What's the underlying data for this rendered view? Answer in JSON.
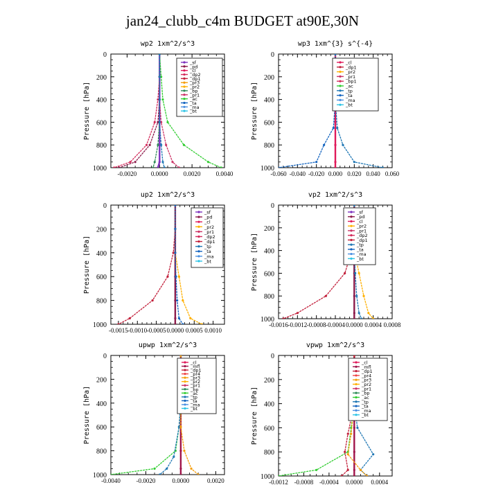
{
  "figure": {
    "title": "jan24_clubb_c4m  BUDGET at90E,30N"
  },
  "colors": {
    "sf": "#7b2fbe",
    "pd": "#8b1a4a",
    "cl": "#e0195a",
    "dp1": "#c21f3a",
    "dp2": "#d42a5b",
    "pr1": "#cc3366",
    "pr2": "#ffb000",
    "pr3": "#f59e0b",
    "pr4": "#ef4444",
    "mfl": "#a0144a",
    "bp": "#2e8b57",
    "ac": "#32cd32",
    "tp": "#1f77b4",
    "ta": "#1565c0",
    "ma": "#4a90e2",
    "bt": "#2ec4e6"
  },
  "chart_data": [
    {
      "type": "line",
      "title": "wp2   1xm^2/s^3",
      "ylabel": "Pressure [hPa]",
      "ylim": [
        1000,
        0
      ],
      "xlim": [
        -0.003,
        0.004
      ],
      "xticks": [
        "-0.0020",
        "0.0000",
        "0.0020",
        "0.0040"
      ],
      "xtick_values": [
        -0.002,
        0.0,
        0.002,
        0.004
      ],
      "yticks": [
        "0",
        "200",
        "400",
        "600",
        "800",
        "1000"
      ],
      "legend": [
        "_sf",
        "_pd",
        "_cl",
        "_dp2",
        "_dp1",
        "_pr3",
        "_pr2",
        "_bp",
        "_pr1",
        "_ac",
        "_ta",
        "_ma",
        "_bt"
      ],
      "series": [
        {
          "name": "_sf",
          "color_key": "sf",
          "x": [
            0,
            0,
            0,
            0,
            0,
            0,
            -0.0001
          ],
          "y": [
            0,
            200,
            400,
            600,
            800,
            950,
            1000
          ]
        },
        {
          "name": "_pd",
          "color_key": "pd",
          "x": [
            0,
            0,
            0,
            -0.0001,
            -0.0006,
            -0.0015,
            -0.0025
          ],
          "y": [
            0,
            200,
            400,
            600,
            800,
            950,
            1000
          ]
        },
        {
          "name": "_dp2",
          "color_key": "dp2",
          "x": [
            0,
            0,
            -0.0001,
            -0.0003,
            -0.0008,
            -0.0018,
            -0.0028
          ],
          "y": [
            0,
            200,
            400,
            600,
            800,
            950,
            1000
          ]
        },
        {
          "name": "_pr1",
          "color_key": "pr1",
          "x": [
            0,
            0,
            0,
            0.0001,
            0.0004,
            0.0008,
            0.0012
          ],
          "y": [
            0,
            200,
            400,
            600,
            800,
            950,
            1000
          ]
        },
        {
          "name": "_ac",
          "color_key": "ac",
          "x": [
            0,
            0.0001,
            0.0002,
            0.0005,
            0.0015,
            0.003,
            0.0038
          ],
          "y": [
            0,
            200,
            400,
            600,
            800,
            950,
            1000
          ]
        },
        {
          "name": "_bp",
          "color_key": "bp",
          "x": [
            0,
            0,
            0,
            0,
            -0.0001,
            -0.0003,
            -0.0004
          ],
          "y": [
            0,
            200,
            400,
            600,
            800,
            950,
            1000
          ]
        },
        {
          "name": "_tp",
          "color_key": "tp",
          "x": [
            0,
            0,
            0,
            0,
            0.0001,
            0.0002,
            0.0003
          ],
          "y": [
            0,
            200,
            400,
            600,
            800,
            950,
            1000
          ]
        }
      ]
    },
    {
      "type": "line",
      "title": "wp3   1xm^{3} s^{-4}",
      "ylabel": "Pressure [hPa]",
      "ylim": [
        1000,
        0
      ],
      "xlim": [
        -0.06,
        0.06
      ],
      "xticks": [
        "-0.060",
        "-0.040",
        "-0.020",
        "0.000",
        "0.020",
        "0.040",
        "0.060"
      ],
      "xtick_values": [
        -0.06,
        -0.04,
        -0.02,
        0.0,
        0.02,
        0.04,
        0.06
      ],
      "yticks": [
        "0",
        "200",
        "400",
        "600",
        "800",
        "1000"
      ],
      "legend": [
        "_cl",
        "_dp1",
        "_pr2",
        "_pr1",
        "_bp1",
        "_ac",
        "_tp",
        "_ta",
        "_ma",
        "_bt"
      ],
      "series": [
        {
          "name": "_cl",
          "color_key": "cl",
          "x": [
            0,
            0,
            0,
            0,
            0,
            0,
            0
          ],
          "y": [
            0,
            200,
            400,
            600,
            800,
            950,
            1000
          ]
        },
        {
          "name": "_ta",
          "color_key": "ta",
          "x": [
            0,
            0,
            0,
            -0.002,
            -0.012,
            -0.02,
            -0.06
          ],
          "y": [
            0,
            200,
            400,
            650,
            800,
            950,
            1000
          ]
        },
        {
          "name": "_tp",
          "color_key": "tp",
          "x": [
            0,
            0,
            0,
            0.002,
            0.008,
            0.02,
            0.05
          ],
          "y": [
            0,
            200,
            400,
            650,
            800,
            950,
            1000
          ]
        }
      ]
    },
    {
      "type": "line",
      "title": "up2   1xm^2/s^3",
      "ylabel": "Pressure [hPa]",
      "ylim": [
        1000,
        0
      ],
      "xlim": [
        -0.0017,
        0.0013
      ],
      "xticks": [
        "-0.0015",
        "-0.0010",
        "-0.0005",
        "0.0000",
        "0.0005",
        "0.0010"
      ],
      "xtick_values": [
        -0.0015,
        -0.001,
        -0.0005,
        0.0,
        0.0005,
        0.001
      ],
      "yticks": [
        "0",
        "200",
        "400",
        "600",
        "800",
        "1000"
      ],
      "legend": [
        "_sf",
        "_pd",
        "_cl",
        "_pr2",
        "_pr1",
        "_dp2",
        "_dp1",
        "_tp",
        "_ta",
        "_ma",
        "_bt"
      ],
      "series": [
        {
          "name": "_pd",
          "color_key": "pd",
          "x": [
            0,
            0,
            0,
            0,
            0,
            0,
            0
          ],
          "y": [
            0,
            200,
            400,
            600,
            800,
            950,
            1000
          ]
        },
        {
          "name": "_dp1",
          "color_key": "dp1",
          "x": [
            0,
            0,
            -5e-05,
            -0.0002,
            -0.0006,
            -0.0012,
            -0.0015
          ],
          "y": [
            0,
            200,
            400,
            600,
            800,
            950,
            1000
          ]
        },
        {
          "name": "_pr2",
          "color_key": "pr2",
          "x": [
            0,
            0,
            0,
            0.0001,
            0.0002,
            0.0004,
            0.0007
          ],
          "y": [
            0,
            200,
            400,
            600,
            800,
            950,
            1000
          ]
        },
        {
          "name": "_ta",
          "color_key": "ta",
          "x": [
            0,
            0,
            0,
            2e-05,
            5e-05,
            0.0001,
            0.0002
          ],
          "y": [
            0,
            200,
            400,
            600,
            800,
            950,
            1000
          ]
        }
      ]
    },
    {
      "type": "line",
      "title": "vp2   1xm^2/s^3",
      "ylabel": "Pressure [hPa]",
      "ylim": [
        1000,
        0
      ],
      "xlim": [
        -0.0016,
        0.0008
      ],
      "xticks": [
        "-0.0016",
        "-0.0012",
        "-0.0008",
        "-0.0004",
        "0.0000",
        "0.0004",
        "0.0008"
      ],
      "xtick_values": [
        -0.0016,
        -0.0012,
        -0.0008,
        -0.0004,
        0.0,
        0.0004,
        0.0008
      ],
      "yticks": [
        "0",
        "200",
        "400",
        "600",
        "800",
        "1000"
      ],
      "legend": [
        "_sf",
        "_pd",
        "_cl",
        "_pr2",
        "_pr1",
        "_dp2",
        "_dp1",
        "_tp",
        "_ta",
        "_ma",
        "_bt"
      ],
      "series": [
        {
          "name": "_pd",
          "color_key": "pd",
          "x": [
            0,
            0,
            0,
            0,
            0,
            0,
            0
          ],
          "y": [
            0,
            200,
            400,
            600,
            800,
            950,
            1000
          ]
        },
        {
          "name": "_dp1",
          "color_key": "dp1",
          "x": [
            0,
            0,
            -5e-05,
            -0.0002,
            -0.0006,
            -0.0012,
            -0.0015
          ],
          "y": [
            0,
            200,
            400,
            600,
            800,
            950,
            1000
          ]
        },
        {
          "name": "_pr2",
          "color_key": "pr2",
          "x": [
            0,
            0,
            0,
            0.0001,
            0.0002,
            0.0003,
            0.0004
          ],
          "y": [
            0,
            200,
            400,
            600,
            800,
            950,
            1000
          ]
        },
        {
          "name": "_tp",
          "color_key": "tp",
          "x": [
            0,
            0,
            0,
            2e-05,
            5e-05,
            0.0001,
            0.00015
          ],
          "y": [
            0,
            200,
            400,
            600,
            800,
            950,
            1000
          ]
        }
      ]
    },
    {
      "type": "line",
      "title": "upwp   1xm^2/s^3",
      "ylabel": "Pressure [hPa]",
      "ylim": [
        1000,
        0
      ],
      "xlim": [
        -0.004,
        0.0025
      ],
      "xticks": [
        "-0.0040",
        "-0.0020",
        "0.0000",
        "0.0020"
      ],
      "xtick_values": [
        -0.004,
        -0.002,
        0.0,
        0.002
      ],
      "yticks": [
        "0",
        "200",
        "400",
        "600",
        "800",
        "1000"
      ],
      "legend": [
        "_cl",
        "_mfl",
        "_dp1",
        "_pr4",
        "_pr3",
        "_pr2",
        "_pr1",
        "_bp",
        "_ac",
        "_tp",
        "_ta",
        "_ma",
        "_bt"
      ],
      "series": [
        {
          "name": "_mfl",
          "color_key": "mfl",
          "x": [
            0,
            0,
            0,
            0,
            0,
            0,
            0
          ],
          "y": [
            0,
            200,
            400,
            600,
            800,
            950,
            1000
          ]
        },
        {
          "name": "_ac",
          "color_key": "ac",
          "x": [
            0,
            0,
            0,
            -0.0001,
            -0.0003,
            -0.0015,
            -0.004
          ],
          "y": [
            0,
            200,
            400,
            600,
            800,
            950,
            1000
          ]
        },
        {
          "name": "_tp",
          "color_key": "tp",
          "x": [
            0,
            0,
            0,
            -0.0001,
            -0.0004,
            -0.0008,
            -0.0012
          ],
          "y": [
            0,
            200,
            400,
            600,
            850,
            950,
            1000
          ]
        },
        {
          "name": "_pr3",
          "color_key": "pr3",
          "x": [
            0,
            0,
            0,
            0,
            0.0002,
            0.0006,
            0.001
          ],
          "y": [
            0,
            200,
            400,
            600,
            800,
            950,
            1000
          ]
        }
      ]
    },
    {
      "type": "line",
      "title": "vpwp   1xm^2/s^3",
      "ylabel": "Pressure [hPa]",
      "ylim": [
        1000,
        0
      ],
      "xlim": [
        -0.0012,
        0.0006
      ],
      "xticks": [
        "-0.0012",
        "-0.0008",
        "-0.0004",
        "0.0000",
        "0.0004"
      ],
      "xtick_values": [
        -0.0012,
        -0.0008,
        -0.0004,
        0.0,
        0.0004
      ],
      "yticks": [
        "0",
        "200",
        "400",
        "600",
        "800",
        "1000"
      ],
      "legend": [
        "_cl",
        "_mfl",
        "_dp1",
        "_pr4",
        "_pr3",
        "_pr2",
        "_pr1",
        "_bp",
        "_ac",
        "_tp",
        "_ta",
        "_ma",
        "_bt"
      ],
      "series": [
        {
          "name": "_mfl",
          "color_key": "mfl",
          "x": [
            0,
            0,
            0,
            0,
            0,
            0,
            0
          ],
          "y": [
            0,
            200,
            400,
            600,
            800,
            950,
            1000
          ]
        },
        {
          "name": "_tp",
          "color_key": "tp",
          "x": [
            0,
            0,
            0,
            5e-05,
            0.0003,
            0.0001,
            0.0002
          ],
          "y": [
            0,
            200,
            400,
            600,
            820,
            950,
            1000
          ]
        },
        {
          "name": "_ac",
          "color_key": "ac",
          "x": [
            0,
            0,
            0,
            -5e-05,
            -0.0001,
            -0.0006,
            -0.0012
          ],
          "y": [
            0,
            200,
            400,
            600,
            800,
            950,
            1000
          ]
        },
        {
          "name": "_pr3",
          "color_key": "pr3",
          "x": [
            0,
            0,
            0,
            -5e-05,
            -0.0001,
            0.0001,
            0.0002
          ],
          "y": [
            0,
            200,
            400,
            650,
            820,
            950,
            1000
          ]
        },
        {
          "name": "_dp1",
          "color_key": "dp1",
          "x": [
            0,
            0,
            0,
            -0.0001,
            -0.00015,
            -0.0001,
            -0.0002
          ],
          "y": [
            0,
            200,
            400,
            650,
            800,
            950,
            1000
          ]
        }
      ]
    }
  ]
}
